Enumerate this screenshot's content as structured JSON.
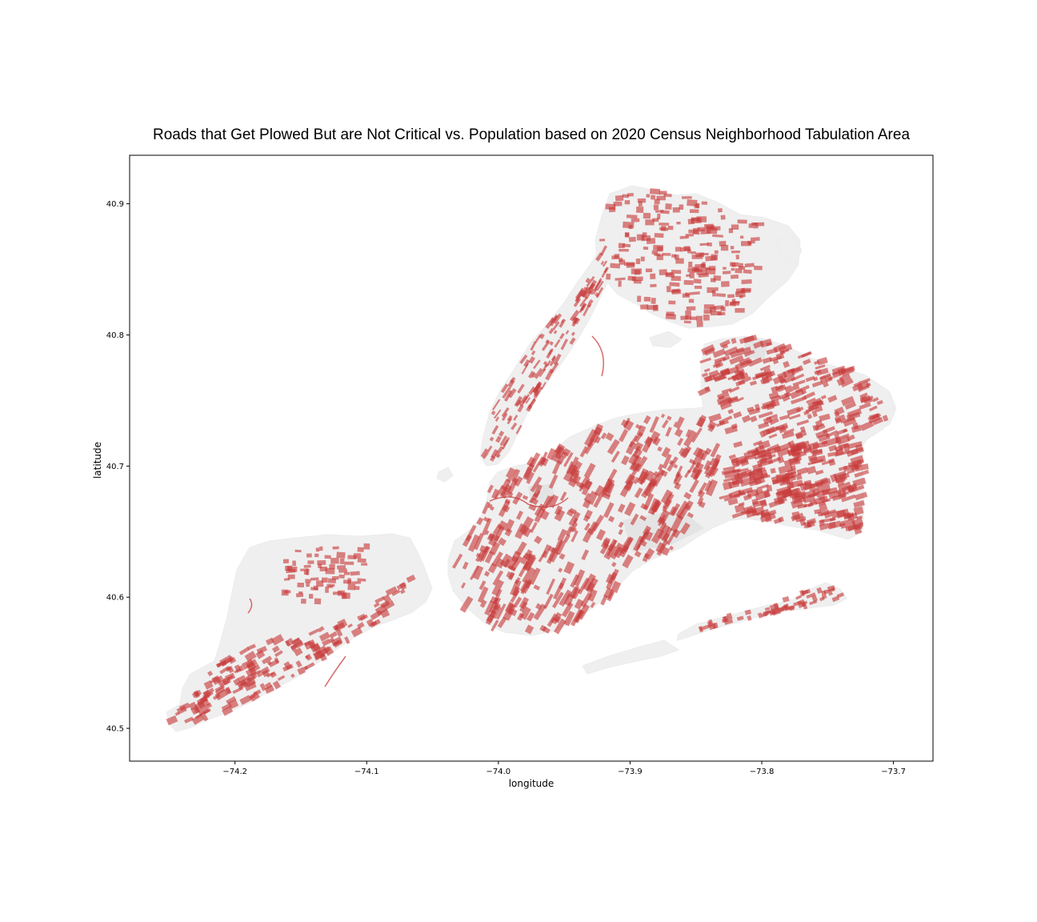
{
  "chart_data": {
    "type": "map",
    "title": "Roads that Get Plowed But are Not Critical vs. Population based on 2020 Census Neighborhood Tabulation Area",
    "xlabel": "longitude",
    "ylabel": "latitude",
    "xlim": [
      -74.28,
      -73.67
    ],
    "ylim": [
      40.475,
      40.937
    ],
    "x_ticks": [
      {
        "value": -74.2,
        "label": "−74.2"
      },
      {
        "value": -74.1,
        "label": "−74.1"
      },
      {
        "value": -74.0,
        "label": "−74.0"
      },
      {
        "value": -73.9,
        "label": "−73.9"
      },
      {
        "value": -73.8,
        "label": "−73.8"
      },
      {
        "value": -73.7,
        "label": "−73.7"
      }
    ],
    "y_ticks": [
      {
        "value": 40.5,
        "label": "40.5"
      },
      {
        "value": 40.6,
        "label": "40.6"
      },
      {
        "value": 40.7,
        "label": "40.7"
      },
      {
        "value": 40.8,
        "label": "40.8"
      },
      {
        "value": 40.9,
        "label": "40.9"
      }
    ],
    "grid": false,
    "colors": {
      "road": "#c83a3a",
      "land": "#efefef",
      "frame": "#000000"
    },
    "layers": [
      "neighborhood-tabulation-areas",
      "non-critical-plowed-roads"
    ]
  }
}
